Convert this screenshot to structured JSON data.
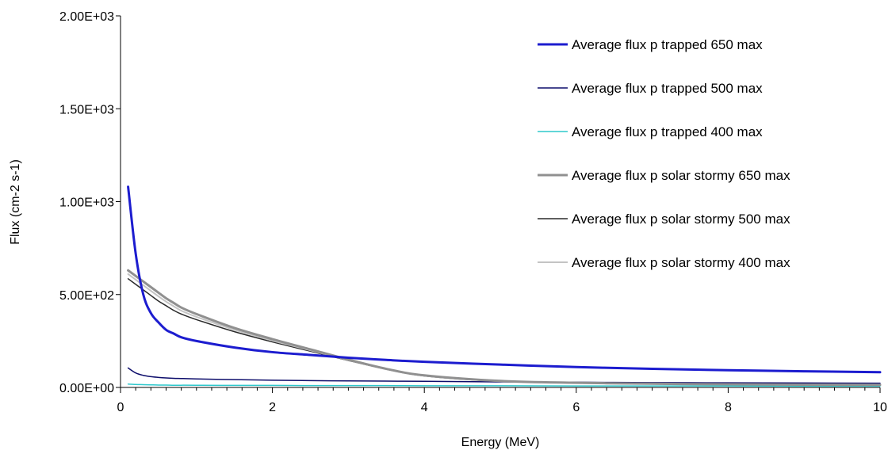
{
  "chart_data": {
    "type": "line",
    "title": "",
    "xlabel": "Energy (MeV)",
    "ylabel": "Flux (cm-2 s-1)",
    "xlim": [
      0,
      10
    ],
    "ylim": [
      0,
      2000
    ],
    "x_ticks": [
      0,
      2,
      4,
      6,
      8,
      10
    ],
    "x_tick_labels": [
      "0",
      "2",
      "4",
      "6",
      "8",
      "10"
    ],
    "y_ticks": [
      0,
      500,
      1000,
      1500,
      2000
    ],
    "y_tick_labels": [
      "0.00E+00",
      "5.00E+02",
      "1.00E+03",
      "1.50E+03",
      "2.00E+03"
    ],
    "grid": false,
    "legend_position": "top-right",
    "x": [
      0.1,
      0.2,
      0.3,
      0.4,
      0.5,
      0.6,
      0.7,
      0.8,
      1.0,
      1.5,
      2.0,
      2.5,
      3.0,
      3.5,
      4.0,
      5.0,
      6.0,
      7.0,
      8.0,
      9.0,
      10.0
    ],
    "series": [
      {
        "name": "Average flux p trapped 650 max",
        "color": "#1c1ccf",
        "width": 3,
        "values": [
          1080,
          720,
          500,
          400,
          350,
          310,
          290,
          270,
          250,
          215,
          190,
          175,
          160,
          148,
          138,
          123,
          110,
          100,
          93,
          87,
          82
        ]
      },
      {
        "name": "Average flux p trapped 500 max",
        "color": "#0d0d6b",
        "width": 1.5,
        "values": [
          105,
          78,
          65,
          58,
          54,
          51,
          49,
          48,
          46,
          42,
          39,
          37,
          35,
          34,
          33,
          30,
          28,
          26,
          25,
          24,
          23
        ]
      },
      {
        "name": "Average flux p trapped 400 max",
        "color": "#2ec8cc",
        "width": 1.5,
        "values": [
          18,
          16,
          15,
          14,
          13,
          13,
          12,
          12,
          12,
          11,
          11,
          10,
          10,
          10,
          9,
          9,
          8,
          8,
          8,
          7,
          7
        ]
      },
      {
        "name": "Average flux p solar stormy 650 max",
        "color": "#909090",
        "width": 3,
        "values": [
          630,
          600,
          570,
          540,
          510,
          480,
          455,
          430,
          395,
          320,
          260,
          205,
          150,
          100,
          65,
          35,
          25,
          20,
          17,
          15,
          14
        ]
      },
      {
        "name": "Average flux p solar stormy 500 max",
        "color": "#2a2a2a",
        "width": 1.5,
        "values": [
          585,
          555,
          525,
          495,
          465,
          440,
          415,
          395,
          365,
          300,
          245,
          195,
          145,
          98,
          62,
          33,
          24,
          19,
          16,
          14,
          13
        ]
      },
      {
        "name": "Average flux p solar stormy 400 max",
        "color": "#c4c4c4",
        "width": 2,
        "values": [
          610,
          580,
          550,
          520,
          490,
          462,
          437,
          413,
          380,
          310,
          252,
          200,
          147,
          99,
          63,
          34,
          24,
          19,
          16,
          14,
          13
        ]
      }
    ]
  }
}
